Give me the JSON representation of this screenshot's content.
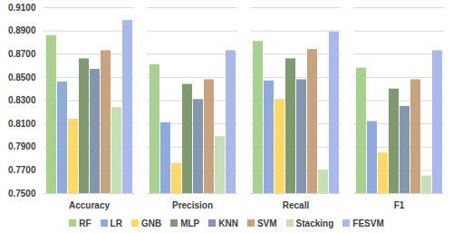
{
  "chart_data": {
    "type": "bar",
    "categories": [
      "Accuracy",
      "Precision",
      "Recall",
      "F1"
    ],
    "series": [
      {
        "name": "RF",
        "color": "#a9d18e",
        "values": [
          0.886,
          0.861,
          0.881,
          0.858
        ]
      },
      {
        "name": "LR",
        "color": "#8faadc",
        "values": [
          0.846,
          0.811,
          0.847,
          0.812
        ]
      },
      {
        "name": "GNB",
        "color": "#ffd966",
        "values": [
          0.814,
          0.776,
          0.831,
          0.785
        ]
      },
      {
        "name": "MLP",
        "color": "#7f9b6e",
        "values": [
          0.866,
          0.844,
          0.866,
          0.84
        ]
      },
      {
        "name": "KNN",
        "color": "#8497b0",
        "values": [
          0.857,
          0.831,
          0.848,
          0.825
        ]
      },
      {
        "name": "SVM",
        "color": "#c9a27e",
        "values": [
          0.873,
          0.848,
          0.874,
          0.848
        ]
      },
      {
        "name": "Stacking",
        "color": "#c5e0b4",
        "values": [
          0.824,
          0.799,
          0.77,
          0.765
        ]
      },
      {
        "name": "FESVM",
        "color": "#a9b9ee",
        "values": [
          0.899,
          0.873,
          0.889,
          0.873
        ]
      }
    ],
    "ylim": [
      0.75,
      0.91
    ],
    "yticks": [
      {
        "value": 0.75,
        "label": "0.7500"
      },
      {
        "value": 0.77,
        "label": "0.7700"
      },
      {
        "value": 0.79,
        "label": "0.7900"
      },
      {
        "value": 0.81,
        "label": "0.8100"
      },
      {
        "value": 0.83,
        "label": "0.8300"
      },
      {
        "value": 0.85,
        "label": "0.8500"
      },
      {
        "value": 0.87,
        "label": "0.8700"
      },
      {
        "value": 0.89,
        "label": "0.8900"
      },
      {
        "value": 0.91,
        "label": "0.9100"
      }
    ],
    "grid": true,
    "legend": "bottom"
  }
}
